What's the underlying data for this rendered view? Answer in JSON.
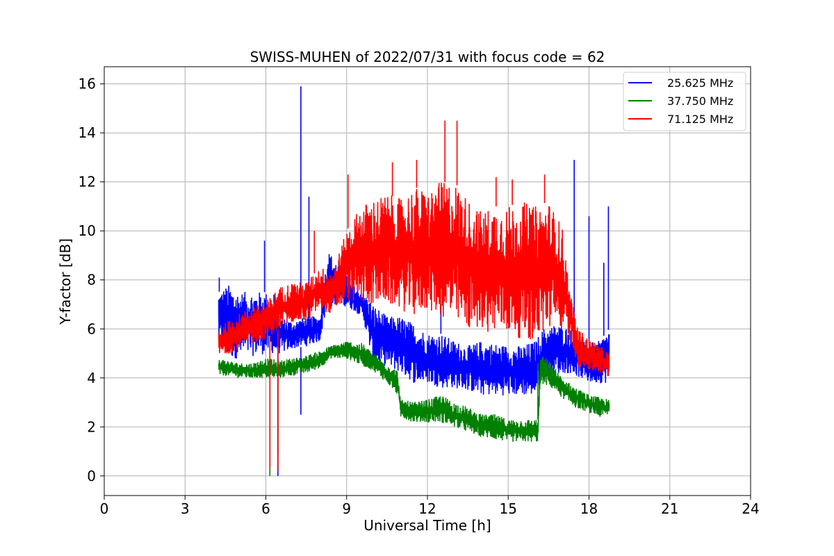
{
  "chart_data": {
    "type": "line",
    "title": "SWISS-MUHEN of 2022/07/31 with focus code = 62",
    "xlabel": "Universal Time [h]",
    "ylabel": "Y-factor [dB]",
    "xlim": [
      0,
      24
    ],
    "ylim": [
      -0.8,
      16.7
    ],
    "xticks": [
      0,
      3,
      6,
      9,
      12,
      15,
      18,
      21,
      24
    ],
    "yticks": [
      0,
      2,
      4,
      6,
      8,
      10,
      12,
      14,
      16
    ],
    "grid": true,
    "legend_position": "top-right",
    "series": [
      {
        "name": "25.625 MHz",
        "color": "#0000ff",
        "points": [
          [
            4.25,
            5.5,
            7.5
          ],
          [
            4.6,
            4.8,
            7.8
          ],
          [
            5.0,
            4.8,
            7.5
          ],
          [
            5.5,
            4.9,
            7.5
          ],
          [
            6.0,
            5.0,
            7.5
          ],
          [
            6.5,
            5.0,
            6.5
          ],
          [
            7.0,
            5.2,
            6.3
          ],
          [
            7.5,
            5.3,
            6.5
          ],
          [
            8.0,
            5.5,
            6.5
          ],
          [
            8.3,
            7.0,
            9.2
          ],
          [
            8.8,
            7.0,
            8.5
          ],
          [
            9.2,
            6.8,
            7.8
          ],
          [
            9.6,
            6.5,
            7.5
          ],
          [
            10.0,
            4.5,
            7.0
          ],
          [
            10.5,
            4.5,
            6.5
          ],
          [
            11.0,
            4.2,
            6.5
          ],
          [
            11.5,
            3.8,
            6.2
          ],
          [
            12.0,
            3.8,
            5.8
          ],
          [
            12.5,
            3.6,
            5.8
          ],
          [
            13.0,
            3.6,
            5.5
          ],
          [
            13.5,
            3.5,
            5.3
          ],
          [
            14.0,
            3.3,
            5.5
          ],
          [
            14.5,
            3.3,
            5.4
          ],
          [
            15.0,
            3.3,
            5.3
          ],
          [
            15.5,
            3.3,
            5.3
          ],
          [
            16.0,
            3.3,
            5.5
          ],
          [
            16.3,
            4.0,
            6.0
          ],
          [
            16.8,
            4.2,
            6.2
          ],
          [
            17.3,
            4.2,
            6.0
          ],
          [
            17.7,
            4.0,
            5.5
          ],
          [
            18.0,
            3.8,
            5.4
          ],
          [
            18.4,
            3.8,
            5.5
          ],
          [
            18.75,
            3.8,
            6.0
          ]
        ],
        "spikes": [
          [
            4.27,
            8.1
          ],
          [
            5.95,
            9.6
          ],
          [
            6.3,
            7.4
          ],
          [
            7.3,
            15.9
          ],
          [
            7.6,
            11.4
          ],
          [
            7.3,
            2.5
          ],
          [
            6.45,
            0.0
          ],
          [
            12.5,
            7.0
          ],
          [
            17.45,
            12.9
          ],
          [
            18.0,
            10.6
          ],
          [
            18.72,
            11.0
          ],
          [
            18.55,
            8.7
          ]
        ]
      },
      {
        "name": "37.750 MHz",
        "color": "#008000",
        "points": [
          [
            4.25,
            4.1,
            4.8
          ],
          [
            4.6,
            4.1,
            4.7
          ],
          [
            5.0,
            4.0,
            4.6
          ],
          [
            5.5,
            4.0,
            4.6
          ],
          [
            6.0,
            4.0,
            4.8
          ],
          [
            6.5,
            4.0,
            4.7
          ],
          [
            7.0,
            4.1,
            4.8
          ],
          [
            7.5,
            4.2,
            4.9
          ],
          [
            8.0,
            4.4,
            5.1
          ],
          [
            8.4,
            4.8,
            5.3
          ],
          [
            9.0,
            4.8,
            5.5
          ],
          [
            9.6,
            4.5,
            5.4
          ],
          [
            10.0,
            4.3,
            5.0
          ],
          [
            10.5,
            3.8,
            4.6
          ],
          [
            10.9,
            3.3,
            4.3
          ],
          [
            11.0,
            2.4,
            3.1
          ],
          [
            11.5,
            2.2,
            3.0
          ],
          [
            12.0,
            2.2,
            3.1
          ],
          [
            12.5,
            2.2,
            3.3
          ],
          [
            13.0,
            2.0,
            3.0
          ],
          [
            13.5,
            1.8,
            2.8
          ],
          [
            14.0,
            1.6,
            2.5
          ],
          [
            14.5,
            1.5,
            2.5
          ],
          [
            15.0,
            1.4,
            2.3
          ],
          [
            15.5,
            1.4,
            2.3
          ],
          [
            16.1,
            1.4,
            2.3
          ],
          [
            16.2,
            3.8,
            5.0
          ],
          [
            16.6,
            3.6,
            4.6
          ],
          [
            17.0,
            3.2,
            4.0
          ],
          [
            17.5,
            2.8,
            3.6
          ],
          [
            18.0,
            2.6,
            3.3
          ],
          [
            18.4,
            2.4,
            3.2
          ],
          [
            18.75,
            2.5,
            3.1
          ]
        ],
        "spikes": [
          [
            6.15,
            0.0
          ],
          [
            6.45,
            1.0
          ],
          [
            16.1,
            4.6
          ]
        ]
      },
      {
        "name": "71.125 MHz",
        "color": "#ff0000",
        "points": [
          [
            4.25,
            4.9,
            6.0
          ],
          [
            4.6,
            5.0,
            6.3
          ],
          [
            5.0,
            5.2,
            6.6
          ],
          [
            5.5,
            5.4,
            6.9
          ],
          [
            6.0,
            5.6,
            7.1
          ],
          [
            6.5,
            6.0,
            7.7
          ],
          [
            7.0,
            6.3,
            7.9
          ],
          [
            7.5,
            6.3,
            7.9
          ],
          [
            8.0,
            6.8,
            8.5
          ],
          [
            8.5,
            6.6,
            8.4
          ],
          [
            9.0,
            7.2,
            10.0
          ],
          [
            9.5,
            7.0,
            11.0
          ],
          [
            10.0,
            7.0,
            11.3
          ],
          [
            10.5,
            7.0,
            11.5
          ],
          [
            11.0,
            6.8,
            11.3
          ],
          [
            11.5,
            6.5,
            11.8
          ],
          [
            12.0,
            6.8,
            11.6
          ],
          [
            12.5,
            6.5,
            12.0
          ],
          [
            13.0,
            6.2,
            12.0
          ],
          [
            13.5,
            6.0,
            11.3
          ],
          [
            14.0,
            6.0,
            10.8
          ],
          [
            14.5,
            5.8,
            11.0
          ],
          [
            15.0,
            5.8,
            11.0
          ],
          [
            15.5,
            5.6,
            11.2
          ],
          [
            16.0,
            5.5,
            11.0
          ],
          [
            16.5,
            6.0,
            11.2
          ],
          [
            17.0,
            6.0,
            10.2
          ],
          [
            17.3,
            5.5,
            7.5
          ],
          [
            17.6,
            4.5,
            6.0
          ],
          [
            18.0,
            4.3,
            5.6
          ],
          [
            18.4,
            4.2,
            5.3
          ],
          [
            18.75,
            4.0,
            5.0
          ]
        ],
        "spikes": [
          [
            6.15,
            0.3
          ],
          [
            6.45,
            0.2
          ],
          [
            7.8,
            10.0
          ],
          [
            12.65,
            14.5
          ],
          [
            13.1,
            14.5
          ],
          [
            11.6,
            12.9
          ],
          [
            10.7,
            12.8
          ],
          [
            16.35,
            12.3
          ],
          [
            9.05,
            12.3
          ],
          [
            14.55,
            12.2
          ],
          [
            15.15,
            12.1
          ]
        ]
      }
    ]
  }
}
